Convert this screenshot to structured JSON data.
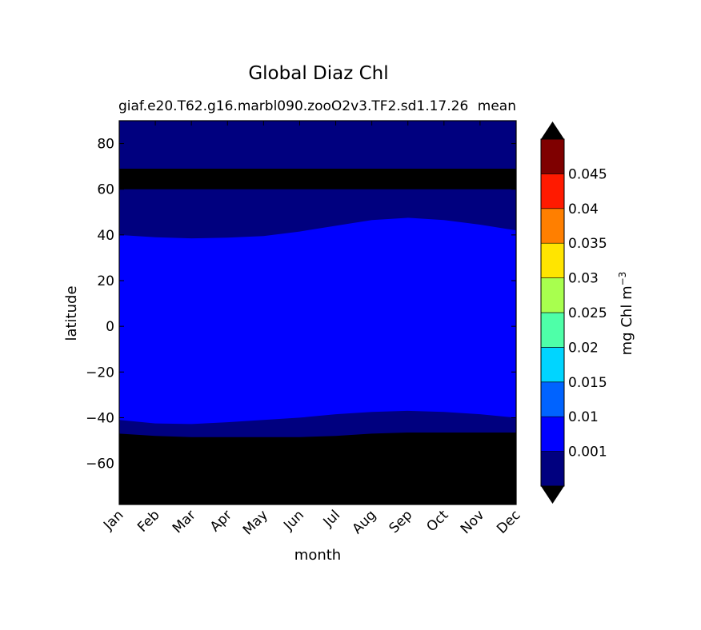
{
  "chart_data": {
    "type": "heatmap",
    "title": "Global Diaz Chl",
    "subtitle_left": "giaf.e20.T62.g16.marbl090.zooO2v3.TF2.sd1.17.26",
    "subtitle_right": "mean",
    "xlabel": "month",
    "ylabel": "latitude",
    "x_categories": [
      "Jan",
      "Feb",
      "Mar",
      "Apr",
      "May",
      "Jun",
      "Jul",
      "Aug",
      "Sep",
      "Oct",
      "Nov",
      "Dec"
    ],
    "y_ticks": [
      "80",
      "60",
      "40",
      "20",
      "0",
      "−20",
      "−40",
      "−60"
    ],
    "ylim": [
      -78,
      90
    ],
    "colorbar": {
      "label": "mg Chl m",
      "label_superscript": "−3",
      "tick_labels": [
        "0.001",
        "0.01",
        "0.015",
        "0.02",
        "0.025",
        "0.03",
        "0.035",
        "0.04",
        "0.045"
      ],
      "colors": [
        "#00007f",
        "#0000ff",
        "#0063ff",
        "#00d5ff",
        "#4effa8",
        "#a8ff4e",
        "#ffe500",
        "#ff7f00",
        "#ff1a00",
        "#7f0000"
      ],
      "under_color": "#000000",
      "over_color": "#000000",
      "extend": "both"
    },
    "bands": {
      "months": [
        1,
        2,
        3,
        4,
        5,
        6,
        7,
        8,
        9,
        10,
        11,
        12
      ],
      "polar_ice_band": {
        "lower": 60,
        "upper": 69,
        "color": "#000000"
      },
      "north_edge_0_001": [
        40,
        39,
        38.5,
        38.8,
        39.5,
        41.5,
        44,
        46.5,
        47.5,
        46.5,
        44.5,
        42
      ],
      "south_edge_0_001": [
        -41,
        -42.5,
        -42.8,
        -42,
        -41,
        -40,
        -38.5,
        -37.5,
        -37,
        -37.5,
        -38.5,
        -40
      ],
      "south_nodata_edge": [
        -47,
        -48,
        -48.5,
        -48.5,
        -48.5,
        -48.5,
        -48,
        -47,
        -46.5,
        -46.5,
        -46.5,
        -46.5
      ],
      "north_background_color": "#00007f",
      "mid_color": "#0000ff",
      "south_nodata_color": "#000000"
    }
  }
}
